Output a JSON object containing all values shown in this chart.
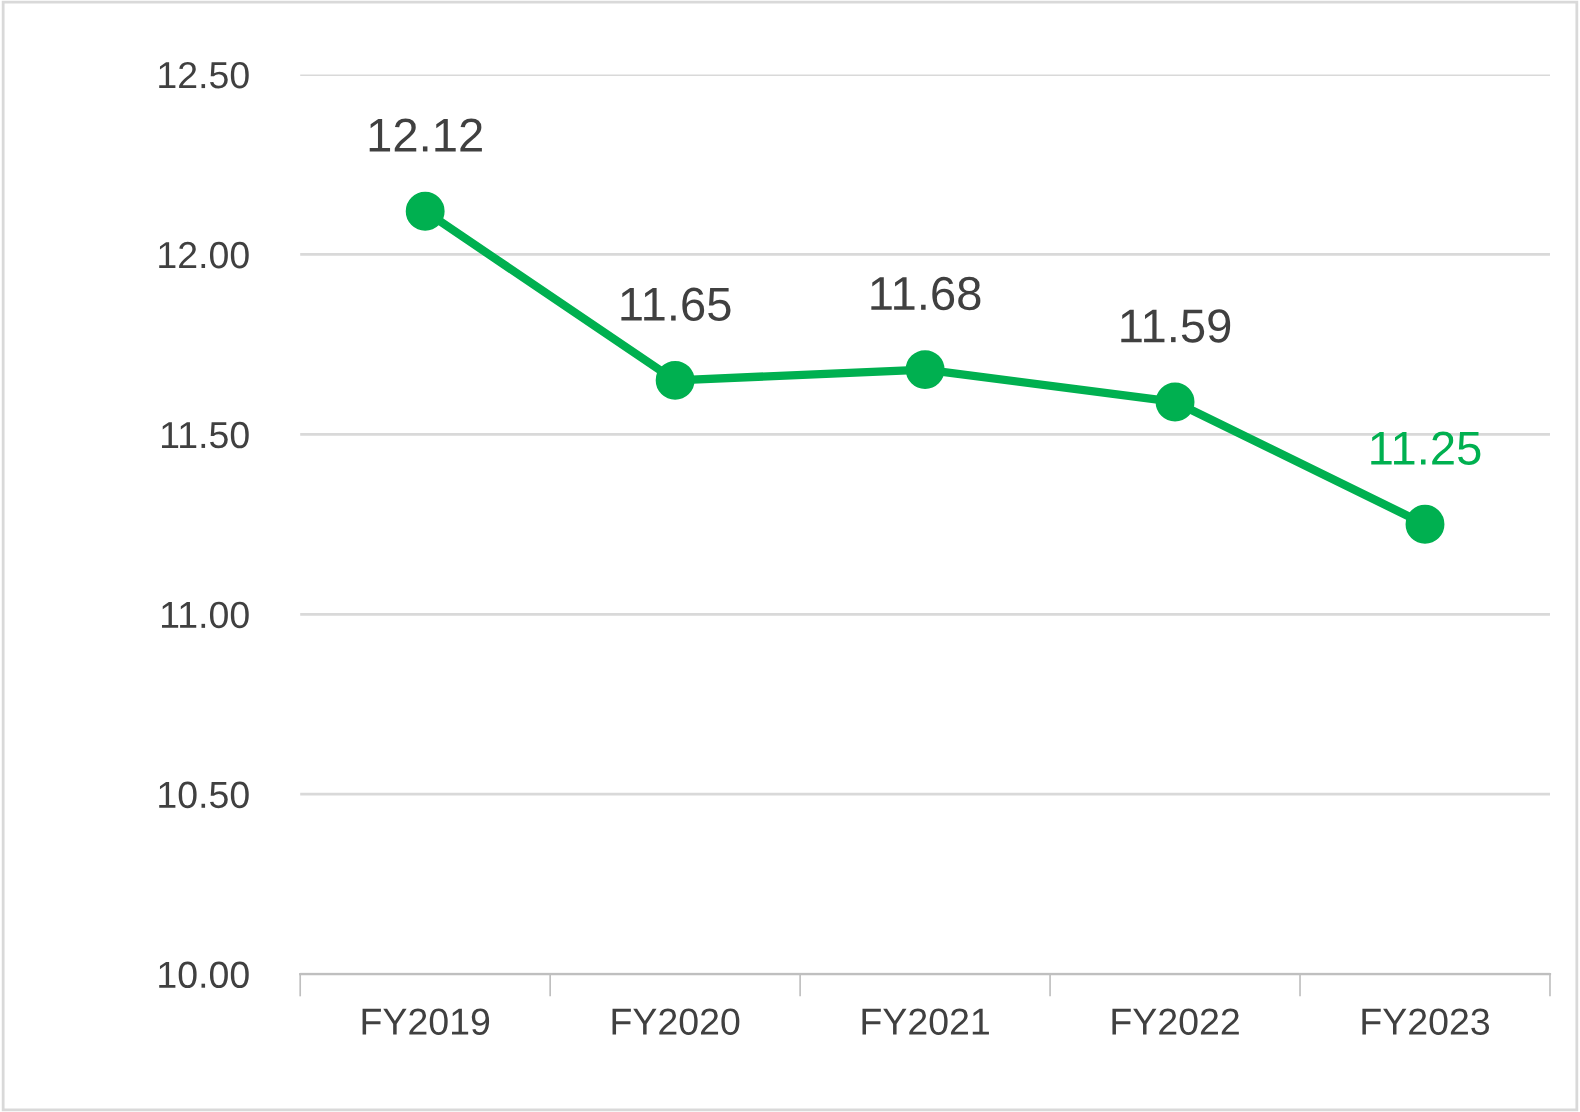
{
  "chart_data": {
    "type": "line",
    "categories": [
      "FY2019",
      "FY2020",
      "FY2021",
      "FY2022",
      "FY2023"
    ],
    "series": [
      {
        "color": "#00b050",
        "values": [
          12.12,
          11.65,
          11.68,
          11.59,
          11.25
        ]
      }
    ],
    "ylim": [
      10.0,
      12.5
    ],
    "yticks": [
      {
        "value": 10.0,
        "label": "10.00"
      },
      {
        "value": 10.5,
        "label": "10.50"
      },
      {
        "value": 11.0,
        "label": "11.00"
      },
      {
        "value": 11.5,
        "label": "11.50"
      },
      {
        "value": 12.0,
        "label": "12.00"
      },
      {
        "value": 12.5,
        "label": "12.50"
      }
    ],
    "grid": "y",
    "marker": "circle",
    "line_style": "solid",
    "data_labels": true
  }
}
